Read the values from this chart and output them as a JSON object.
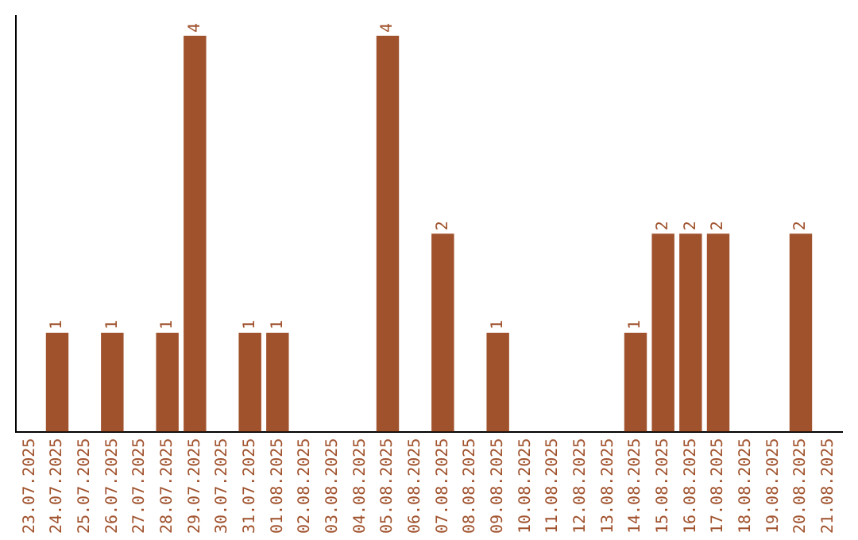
{
  "chart_data": {
    "type": "bar",
    "categories": [
      "23.07.2025",
      "24.07.2025",
      "25.07.2025",
      "26.07.2025",
      "27.07.2025",
      "28.07.2025",
      "29.07.2025",
      "30.07.2025",
      "31.07.2025",
      "01.08.2025",
      "02.08.2025",
      "03.08.2025",
      "04.08.2025",
      "05.08.2025",
      "06.08.2025",
      "07.08.2025",
      "08.08.2025",
      "09.08.2025",
      "10.08.2025",
      "11.08.2025",
      "12.08.2025",
      "13.08.2025",
      "14.08.2025",
      "15.08.2025",
      "16.08.2025",
      "17.08.2025",
      "18.08.2025",
      "19.08.2025",
      "20.08.2025",
      "21.08.2025"
    ],
    "values": [
      0,
      1,
      0,
      1,
      0,
      1,
      4,
      0,
      1,
      1,
      0,
      0,
      0,
      4,
      0,
      2,
      0,
      1,
      0,
      0,
      0,
      0,
      1,
      2,
      2,
      2,
      0,
      0,
      2,
      0
    ],
    "value_labels": [
      null,
      "1",
      null,
      "1",
      null,
      "1",
      "4",
      null,
      "1",
      "1",
      null,
      null,
      null,
      "4",
      null,
      "2",
      null,
      "1",
      null,
      null,
      null,
      null,
      "1",
      "2",
      "2",
      "2",
      null,
      null,
      "2",
      null
    ],
    "color": "#a0522d",
    "ylim": [
      0,
      4.2
    ],
    "tick_labels": "x",
    "grid": false,
    "legend": false
  }
}
